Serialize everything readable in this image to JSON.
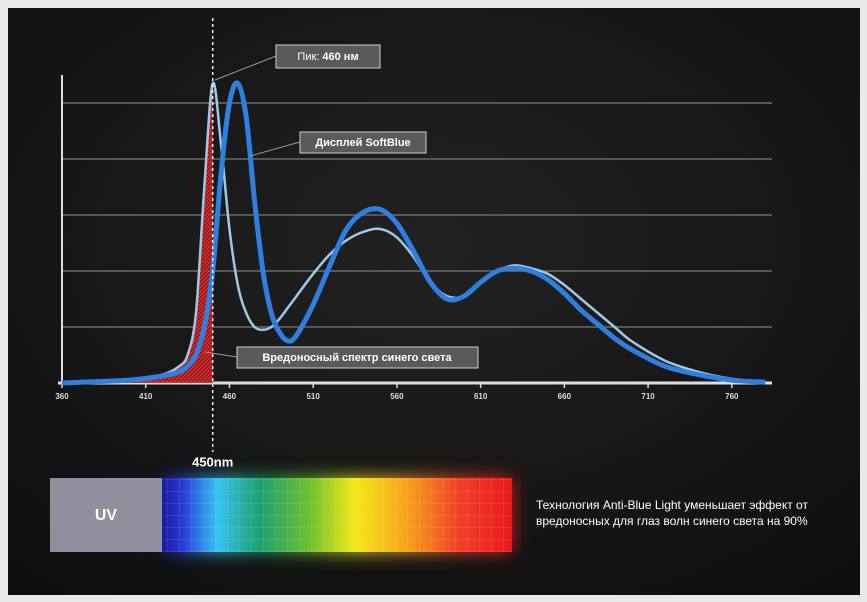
{
  "chart_data": {
    "type": "line",
    "x": [
      360,
      380,
      400,
      420,
      430,
      435,
      440,
      445,
      450,
      455,
      460,
      465,
      470,
      475,
      480,
      485,
      490,
      495,
      500,
      510,
      520,
      530,
      540,
      550,
      560,
      570,
      580,
      590,
      600,
      610,
      620,
      630,
      640,
      650,
      660,
      670,
      680,
      690,
      700,
      720,
      740,
      760,
      780
    ],
    "series": [
      {
        "color": "#9ec9e6",
        "values": [
          0,
          0.5,
          1,
          3,
          6,
          10,
          25,
          70,
          107,
          85,
          55,
          35,
          25,
          20,
          19,
          20,
          23,
          27,
          31,
          39,
          46,
          51,
          54,
          55,
          52,
          45,
          36,
          31,
          31,
          36,
          40,
          42,
          41,
          39,
          35,
          30,
          25,
          20,
          15,
          8,
          4,
          1.5,
          0.5
        ]
      },
      {
        "name": "Дисплей SoftBlue",
        "color": "#2f7fe0",
        "values": [
          0,
          0.5,
          1,
          2.5,
          4,
          6,
          10,
          20,
          40,
          75,
          100,
          107,
          95,
          65,
          40,
          25,
          18,
          15,
          17,
          28,
          42,
          55,
          61,
          62,
          57,
          47,
          36,
          30,
          31,
          36,
          40,
          41,
          40,
          37,
          32,
          26,
          21,
          16,
          12,
          6,
          3,
          1,
          0.3
        ]
      }
    ],
    "xlim": [
      360,
      784
    ],
    "xticks": [
      360,
      410,
      460,
      510,
      560,
      610,
      660,
      710,
      760
    ],
    "ylim": [
      0,
      110
    ],
    "marker_label": "450nm",
    "marker_x": 450,
    "peak_label": "Пик:",
    "peak_value": "460 нм",
    "harm_label": "Вредоносный спектр синего света",
    "uv_label": "UV",
    "note": "Технология Anti-Blue Light уменьшает эффект от вредоносных для глаз волн синего света на 90%"
  }
}
